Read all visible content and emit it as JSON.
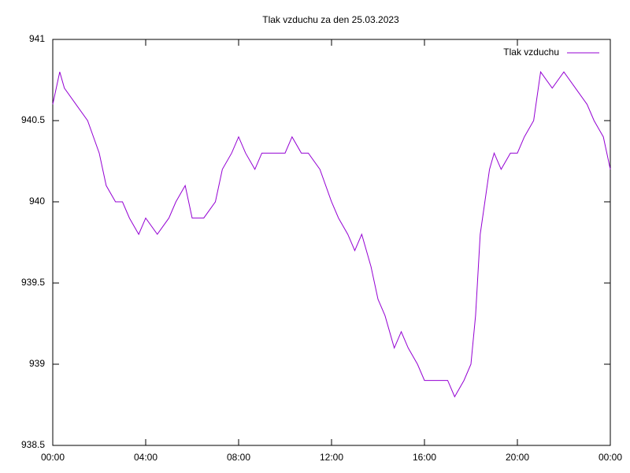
{
  "chart_data": {
    "type": "line",
    "title": "Tlak vzduchu za den 25.03.2023",
    "x": [
      0,
      0.3,
      0.5,
      1.0,
      1.5,
      2.0,
      2.3,
      2.7,
      3.0,
      3.3,
      3.7,
      4.0,
      4.5,
      5.0,
      5.3,
      5.7,
      6.0,
      6.5,
      7.0,
      7.3,
      7.7,
      8.0,
      8.3,
      8.7,
      9.0,
      9.5,
      10.0,
      10.3,
      10.7,
      11.0,
      11.5,
      12.0,
      12.3,
      12.7,
      13.0,
      13.3,
      13.7,
      14.0,
      14.3,
      14.7,
      15.0,
      15.3,
      15.7,
      16.0,
      16.3,
      16.7,
      17.0,
      17.3,
      17.7,
      18.0,
      18.2,
      18.4,
      18.6,
      18.8,
      19.0,
      19.3,
      19.7,
      20.0,
      20.3,
      20.7,
      21.0,
      21.5,
      22.0,
      22.5,
      23.0,
      23.3,
      23.7,
      24.0
    ],
    "series": [
      {
        "name": "Tlak vzduchu",
        "color": "#9400d3",
        "values": [
          940.6,
          940.8,
          940.7,
          940.6,
          940.5,
          940.3,
          940.1,
          940.0,
          940.0,
          939.9,
          939.8,
          939.9,
          939.8,
          939.9,
          940.0,
          940.1,
          939.9,
          939.9,
          940.0,
          940.2,
          940.3,
          940.4,
          940.3,
          940.2,
          940.3,
          940.3,
          940.3,
          940.4,
          940.3,
          940.3,
          940.2,
          940.0,
          939.9,
          939.8,
          939.7,
          939.8,
          939.6,
          939.4,
          939.3,
          939.1,
          939.2,
          939.1,
          939.0,
          938.9,
          938.9,
          938.9,
          938.9,
          938.8,
          938.9,
          939.0,
          939.3,
          939.8,
          940.0,
          940.2,
          940.3,
          940.2,
          940.3,
          940.3,
          940.4,
          940.5,
          940.8,
          940.7,
          940.8,
          940.7,
          940.6,
          940.5,
          940.4,
          940.2
        ]
      }
    ],
    "xlim": [
      0,
      24
    ],
    "xticks": [
      {
        "value": 0,
        "label": "00:00"
      },
      {
        "value": 4,
        "label": "04:00"
      },
      {
        "value": 8,
        "label": "08:00"
      },
      {
        "value": 12,
        "label": "12:00"
      },
      {
        "value": 16,
        "label": "16:00"
      },
      {
        "value": 20,
        "label": "20:00"
      },
      {
        "value": 24,
        "label": "00:00"
      }
    ],
    "ylim": [
      938.5,
      941
    ],
    "yticks": [
      938.5,
      939,
      939.5,
      940,
      940.5,
      941
    ],
    "legend": "top-right"
  }
}
